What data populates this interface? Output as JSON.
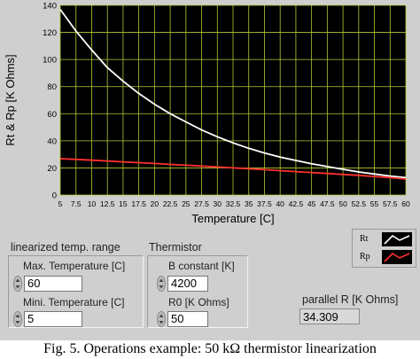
{
  "chart_data": {
    "type": "line",
    "xlabel": "Temperature [C]",
    "ylabel": "Rt & Rp [K Ohms]",
    "xlim": [
      5,
      60
    ],
    "ylim": [
      0,
      140
    ],
    "x_ticks": [
      "5",
      "7.5",
      "10",
      "12.5",
      "15",
      "17.5",
      "20",
      "22.5",
      "25",
      "27.5",
      "30",
      "32.5",
      "35",
      "37.5",
      "40",
      "42.5",
      "45",
      "47.5",
      "50",
      "52.5",
      "55",
      "57.5",
      "60"
    ],
    "y_ticks": [
      "0",
      "20",
      "40",
      "60",
      "80",
      "100",
      "120",
      "140"
    ],
    "grid": true,
    "series": [
      {
        "name": "Rt",
        "color": "#ffffff",
        "x": [
          5,
          7.5,
          10,
          12.5,
          15,
          17.5,
          20,
          22.5,
          25,
          27.5,
          30,
          32.5,
          35,
          37.5,
          40,
          42.5,
          45,
          47.5,
          50,
          52.5,
          55,
          57.5,
          60
        ],
        "values": [
          137,
          121,
          107,
          94,
          84,
          75,
          67,
          60,
          54,
          48,
          43,
          38.5,
          34.5,
          31,
          28,
          25.5,
          23,
          21,
          19,
          17,
          15.5,
          14,
          12.8
        ]
      },
      {
        "name": "Rp",
        "color": "#ff3030",
        "x": [
          5,
          7.5,
          10,
          12.5,
          15,
          17.5,
          20,
          22.5,
          25,
          27.5,
          30,
          32.5,
          35,
          37.5,
          40,
          42.5,
          45,
          47.5,
          50,
          52.5,
          55,
          57.5,
          60
        ],
        "values": [
          26.8,
          26.3,
          25.7,
          25.1,
          24.5,
          23.9,
          23.3,
          22.6,
          22.0,
          21.4,
          20.7,
          20.0,
          19.4,
          18.7,
          18.0,
          17.3,
          16.6,
          15.9,
          15.2,
          14.5,
          13.7,
          12.9,
          11.8
        ]
      }
    ]
  },
  "controls": {
    "range_group_label": "linearized temp. range",
    "thermistor_group_label": "Thermistor",
    "max_temp_label": "Max. Temperature [C]",
    "max_temp_value": "60",
    "mini_temp_label": "Mini. Temperature [C]",
    "mini_temp_value": "5",
    "b_const_label": "B constant [K]",
    "b_const_value": "4200",
    "r0_label": "R0 [K Ohms]",
    "r0_value": "50",
    "parallel_label": "parallel R [K Ohms]",
    "parallel_value": "34.309"
  },
  "caption": "Fig. 5. Operations example: 50 kΩ thermistor linearization"
}
